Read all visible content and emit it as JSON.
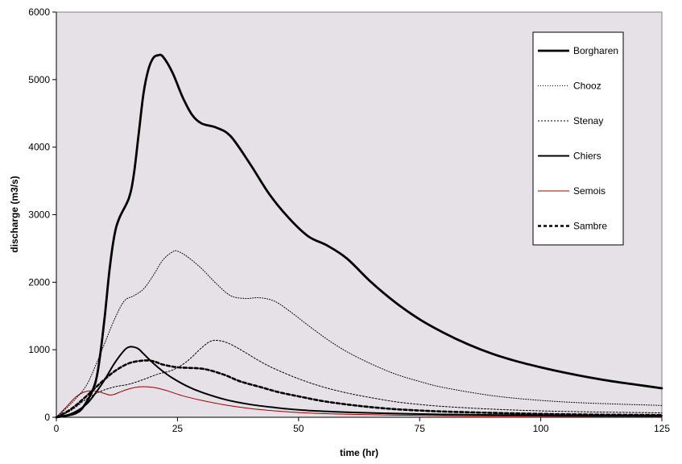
{
  "chart_data": {
    "type": "line",
    "title": "",
    "xlabel": "time (hr)",
    "ylabel": "discharge (m3/s)",
    "xlim": [
      0,
      125
    ],
    "ylim": [
      0,
      6000
    ],
    "x_ticks": [
      0,
      25,
      50,
      75,
      100,
      125
    ],
    "y_ticks": [
      0,
      1000,
      2000,
      3000,
      4000,
      5000,
      6000
    ],
    "grid": false,
    "legend_position": "top-right",
    "plot_background": "#e6e1e6",
    "series": [
      {
        "name": "Borgharen",
        "color": "#000000",
        "style": "thick-solid",
        "x": [
          0,
          4,
          6,
          8,
          9,
          10,
          11,
          12,
          13,
          15,
          16,
          17,
          18,
          19,
          20,
          21,
          22,
          24,
          26,
          28,
          30,
          33,
          36,
          40,
          44,
          48,
          52,
          56,
          60,
          65,
          70,
          75,
          80,
          85,
          90,
          95,
          100,
          105,
          110,
          115,
          120,
          125
        ],
        "y": [
          0,
          60,
          200,
          500,
          900,
          1500,
          2200,
          2700,
          2950,
          3250,
          3600,
          4200,
          4800,
          5150,
          5320,
          5360,
          5340,
          5100,
          4750,
          4480,
          4350,
          4290,
          4160,
          3750,
          3300,
          2950,
          2680,
          2540,
          2350,
          2000,
          1700,
          1450,
          1250,
          1080,
          940,
          830,
          740,
          660,
          590,
          530,
          480,
          430
        ]
      },
      {
        "name": "Chooz",
        "color": "#000000",
        "style": "dotted",
        "x": [
          0,
          3,
          6,
          8,
          10,
          12,
          14,
          16,
          18,
          20,
          22,
          24,
          25,
          27,
          30,
          33,
          36,
          39,
          42,
          45,
          48,
          52,
          56,
          60,
          65,
          70,
          75,
          80,
          90,
          100,
          110,
          125
        ],
        "y": [
          0,
          200,
          450,
          750,
          1100,
          1450,
          1720,
          1800,
          1900,
          2100,
          2330,
          2450,
          2460,
          2380,
          2200,
          1980,
          1800,
          1760,
          1770,
          1720,
          1580,
          1360,
          1150,
          970,
          790,
          640,
          530,
          440,
          320,
          250,
          210,
          175
        ]
      },
      {
        "name": "Stenay",
        "color": "#000000",
        "style": "dashed",
        "x": [
          0,
          3,
          6,
          9,
          12,
          15,
          18,
          21,
          24,
          27,
          30,
          32,
          34,
          36,
          39,
          42,
          45,
          50,
          55,
          60,
          65,
          70,
          75,
          80,
          90,
          100,
          110,
          125
        ],
        "y": [
          0,
          100,
          260,
          380,
          450,
          490,
          560,
          640,
          700,
          830,
          1030,
          1130,
          1130,
          1080,
          960,
          830,
          720,
          570,
          450,
          360,
          290,
          230,
          190,
          160,
          120,
          95,
          80,
          65
        ]
      },
      {
        "name": "Chiers",
        "color": "#000000",
        "style": "solid",
        "x": [
          0,
          3,
          6,
          8,
          10,
          12,
          14,
          15,
          16,
          17,
          18,
          20,
          22,
          24,
          27,
          30,
          35,
          40,
          45,
          50,
          55,
          60,
          70,
          80,
          90,
          100,
          110,
          125
        ],
        "y": [
          0,
          50,
          180,
          350,
          560,
          800,
          990,
          1040,
          1040,
          1010,
          940,
          800,
          680,
          580,
          460,
          370,
          260,
          190,
          145,
          110,
          90,
          75,
          55,
          42,
          35,
          30,
          26,
          22
        ]
      },
      {
        "name": "Semois",
        "color": "#990000",
        "style": "thin-solid",
        "x": [
          0,
          2,
          4,
          6,
          8,
          10,
          11,
          12,
          13,
          15,
          17,
          19,
          21,
          23,
          26,
          30,
          35,
          40,
          45,
          50,
          55,
          60,
          70,
          80,
          90,
          100,
          110,
          125
        ],
        "y": [
          0,
          150,
          300,
          380,
          390,
          350,
          330,
          340,
          370,
          420,
          450,
          450,
          430,
          390,
          320,
          250,
          180,
          130,
          95,
          70,
          55,
          45,
          32,
          24,
          19,
          16,
          14,
          12
        ]
      },
      {
        "name": "Sambre",
        "color": "#000000",
        "style": "thick-dashed",
        "x": [
          0,
          3,
          6,
          9,
          12,
          15,
          18,
          20,
          22,
          25,
          28,
          30,
          32,
          35,
          38,
          42,
          46,
          50,
          55,
          60,
          65,
          70,
          75,
          80,
          90,
          100,
          110,
          125
        ],
        "y": [
          0,
          120,
          300,
          500,
          680,
          800,
          840,
          830,
          780,
          740,
          730,
          720,
          690,
          620,
          530,
          450,
          370,
          310,
          240,
          190,
          150,
          120,
          100,
          85,
          65,
          50,
          40,
          32
        ]
      }
    ]
  }
}
